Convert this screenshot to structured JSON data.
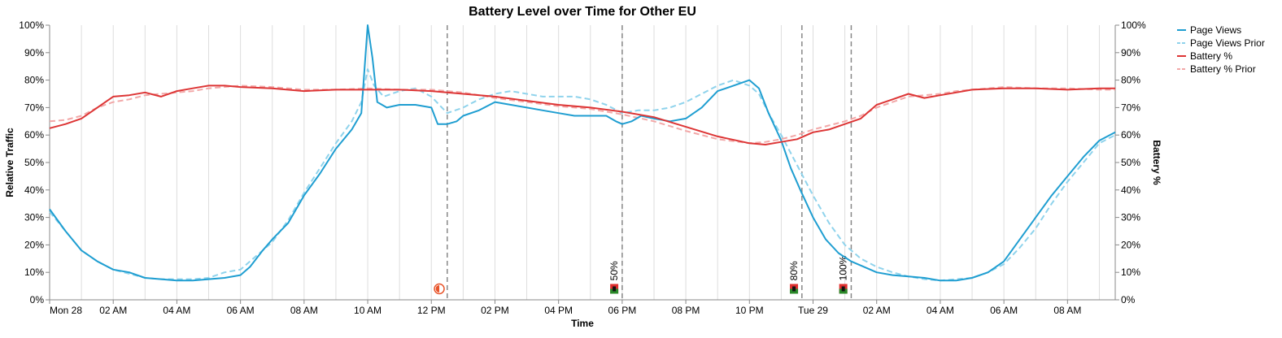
{
  "chart_data": {
    "type": "line",
    "title": "Battery Level over Time for Other EU",
    "xlabel": "Time",
    "ylabel_left": "Relative Traffic",
    "ylabel_right": "Battery %",
    "grid": "vertical",
    "legend_position": "top-right",
    "x_range_hours": [
      0,
      33.5
    ],
    "ylim": [
      0,
      100
    ],
    "x_ticks": [
      {
        "h": 0,
        "label": "Mon 28"
      },
      {
        "h": 2,
        "label": "02 AM"
      },
      {
        "h": 4,
        "label": "04 AM"
      },
      {
        "h": 6,
        "label": "06 AM"
      },
      {
        "h": 8,
        "label": "08 AM"
      },
      {
        "h": 10,
        "label": "10 AM"
      },
      {
        "h": 12,
        "label": "12 PM"
      },
      {
        "h": 14,
        "label": "02 PM"
      },
      {
        "h": 16,
        "label": "04 PM"
      },
      {
        "h": 18,
        "label": "06 PM"
      },
      {
        "h": 20,
        "label": "08 PM"
      },
      {
        "h": 22,
        "label": "10 PM"
      },
      {
        "h": 24,
        "label": "Tue 29"
      },
      {
        "h": 26,
        "label": "02 AM"
      },
      {
        "h": 28,
        "label": "04 AM"
      },
      {
        "h": 30,
        "label": "06 AM"
      },
      {
        "h": 32,
        "label": "08 AM"
      }
    ],
    "y_ticks_left": [
      "0%",
      "10%",
      "20%",
      "30%",
      "40%",
      "50%",
      "60%",
      "70%",
      "80%",
      "90%",
      "100%"
    ],
    "y_ticks_right": [
      "0%",
      "10%",
      "20%",
      "30%",
      "40%",
      "50%",
      "60%",
      "70%",
      "80%",
      "90%",
      "100%"
    ],
    "series": [
      {
        "name": "Page Views",
        "color": "#1f9ed1",
        "dashed": false,
        "axis": "left",
        "points": [
          [
            0,
            33
          ],
          [
            0.5,
            25
          ],
          [
            1,
            18
          ],
          [
            1.5,
            14
          ],
          [
            2,
            11
          ],
          [
            2.5,
            10
          ],
          [
            3,
            8
          ],
          [
            3.5,
            7.5
          ],
          [
            4,
            7
          ],
          [
            4.5,
            7
          ],
          [
            5,
            7.5
          ],
          [
            5.5,
            8
          ],
          [
            6,
            9
          ],
          [
            6.3,
            12
          ],
          [
            6.7,
            18
          ],
          [
            7,
            22
          ],
          [
            7.5,
            28
          ],
          [
            8,
            38
          ],
          [
            8.5,
            46
          ],
          [
            9,
            55
          ],
          [
            9.5,
            62
          ],
          [
            9.8,
            68
          ],
          [
            10,
            100
          ],
          [
            10.15,
            88
          ],
          [
            10.3,
            72
          ],
          [
            10.6,
            70
          ],
          [
            11,
            71
          ],
          [
            11.5,
            71
          ],
          [
            12,
            70
          ],
          [
            12.2,
            64
          ],
          [
            12.5,
            64
          ],
          [
            12.8,
            65
          ],
          [
            13,
            67
          ],
          [
            13.5,
            69
          ],
          [
            14,
            72
          ],
          [
            14.5,
            71
          ],
          [
            15,
            70
          ],
          [
            15.5,
            69
          ],
          [
            16,
            68
          ],
          [
            16.5,
            67
          ],
          [
            17,
            67
          ],
          [
            17.5,
            67
          ],
          [
            17.8,
            65
          ],
          [
            18,
            64
          ],
          [
            18.3,
            65
          ],
          [
            18.6,
            67
          ],
          [
            19,
            66
          ],
          [
            19.5,
            65
          ],
          [
            20,
            66
          ],
          [
            20.5,
            70
          ],
          [
            21,
            76
          ],
          [
            21.5,
            78
          ],
          [
            22,
            80
          ],
          [
            22.3,
            77
          ],
          [
            22.6,
            68
          ],
          [
            23,
            58
          ],
          [
            23.3,
            48
          ],
          [
            23.6,
            40
          ],
          [
            24,
            30
          ],
          [
            24.4,
            22
          ],
          [
            24.8,
            17
          ],
          [
            25.2,
            14
          ],
          [
            25.6,
            12
          ],
          [
            26,
            10
          ],
          [
            26.5,
            9
          ],
          [
            27,
            8.5
          ],
          [
            27.5,
            8
          ],
          [
            28,
            7
          ],
          [
            28.5,
            7
          ],
          [
            29,
            8
          ],
          [
            29.5,
            10
          ],
          [
            30,
            14
          ],
          [
            30.5,
            22
          ],
          [
            31,
            30
          ],
          [
            31.5,
            38
          ],
          [
            32,
            45
          ],
          [
            32.5,
            52
          ],
          [
            33,
            58
          ],
          [
            33.5,
            61
          ]
        ]
      },
      {
        "name": "Page Views Prior",
        "color": "#8fd3ec",
        "dashed": true,
        "axis": "left",
        "points": [
          [
            0,
            32
          ],
          [
            0.5,
            25
          ],
          [
            1,
            18
          ],
          [
            1.5,
            14
          ],
          [
            2,
            11
          ],
          [
            2.5,
            9.5
          ],
          [
            3,
            8
          ],
          [
            3.5,
            7.5
          ],
          [
            4,
            7.5
          ],
          [
            4.5,
            7.5
          ],
          [
            5,
            8
          ],
          [
            5.5,
            10
          ],
          [
            6,
            11
          ],
          [
            6.5,
            16
          ],
          [
            7,
            21
          ],
          [
            7.5,
            29
          ],
          [
            8,
            39
          ],
          [
            8.5,
            48
          ],
          [
            9,
            57
          ],
          [
            9.5,
            65
          ],
          [
            9.8,
            72
          ],
          [
            10,
            84
          ],
          [
            10.2,
            78
          ],
          [
            10.5,
            74
          ],
          [
            11,
            76
          ],
          [
            11.5,
            77
          ],
          [
            12,
            74
          ],
          [
            12.5,
            68
          ],
          [
            13,
            70
          ],
          [
            13.5,
            73
          ],
          [
            14,
            75
          ],
          [
            14.5,
            76
          ],
          [
            15,
            75
          ],
          [
            15.5,
            74
          ],
          [
            16,
            74
          ],
          [
            16.5,
            74
          ],
          [
            17,
            73
          ],
          [
            17.5,
            71
          ],
          [
            18,
            68
          ],
          [
            18.5,
            69
          ],
          [
            19,
            69
          ],
          [
            19.5,
            70
          ],
          [
            20,
            72
          ],
          [
            20.5,
            75
          ],
          [
            21,
            78
          ],
          [
            21.5,
            80
          ],
          [
            22,
            78
          ],
          [
            22.3,
            75
          ],
          [
            22.6,
            68
          ],
          [
            23,
            60
          ],
          [
            23.5,
            49
          ],
          [
            24,
            38
          ],
          [
            24.5,
            28
          ],
          [
            25,
            20
          ],
          [
            25.5,
            15
          ],
          [
            26,
            12
          ],
          [
            26.5,
            10
          ],
          [
            27,
            8.5
          ],
          [
            27.5,
            7.5
          ],
          [
            28,
            7
          ],
          [
            28.5,
            7.5
          ],
          [
            29,
            8
          ],
          [
            29.5,
            10
          ],
          [
            30,
            13
          ],
          [
            30.5,
            19
          ],
          [
            31,
            26
          ],
          [
            31.5,
            35
          ],
          [
            32,
            43
          ],
          [
            32.5,
            50
          ],
          [
            33,
            57
          ],
          [
            33.5,
            60
          ]
        ]
      },
      {
        "name": "Battery %",
        "color": "#dd3535",
        "dashed": false,
        "axis": "right",
        "points": [
          [
            0,
            62.5
          ],
          [
            0.5,
            64
          ],
          [
            1,
            66
          ],
          [
            1.5,
            70
          ],
          [
            2,
            74
          ],
          [
            2.5,
            74.5
          ],
          [
            3,
            75.5
          ],
          [
            3.5,
            74
          ],
          [
            4,
            76
          ],
          [
            4.5,
            77
          ],
          [
            5,
            78
          ],
          [
            5.5,
            78
          ],
          [
            6,
            77.5
          ],
          [
            7,
            77
          ],
          [
            8,
            76
          ],
          [
            9,
            76.5
          ],
          [
            10,
            76.5
          ],
          [
            11,
            76.5
          ],
          [
            12,
            76
          ],
          [
            13,
            75
          ],
          [
            14,
            74
          ],
          [
            15,
            72.5
          ],
          [
            16,
            71
          ],
          [
            17,
            70
          ],
          [
            18,
            68.5
          ],
          [
            19,
            66.5
          ],
          [
            20,
            63
          ],
          [
            21,
            59.5
          ],
          [
            22,
            57
          ],
          [
            22.5,
            56.5
          ],
          [
            23,
            57.5
          ],
          [
            23.5,
            58.5
          ],
          [
            24,
            61
          ],
          [
            24.5,
            62
          ],
          [
            25,
            64
          ],
          [
            25.5,
            66
          ],
          [
            26,
            71
          ],
          [
            26.5,
            73
          ],
          [
            27,
            75
          ],
          [
            27.5,
            73.5
          ],
          [
            28,
            74.5
          ],
          [
            28.5,
            75.5
          ],
          [
            29,
            76.5
          ],
          [
            30,
            77
          ],
          [
            31,
            77
          ],
          [
            32,
            76.5
          ],
          [
            33,
            77
          ],
          [
            33.5,
            77
          ]
        ]
      },
      {
        "name": "Battery % Prior",
        "color": "#f2a8a8",
        "dashed": true,
        "axis": "right",
        "points": [
          [
            0,
            65
          ],
          [
            0.5,
            65.5
          ],
          [
            1,
            67
          ],
          [
            1.5,
            70
          ],
          [
            2,
            72
          ],
          [
            2.5,
            73
          ],
          [
            3,
            74.5
          ],
          [
            3.5,
            75
          ],
          [
            4,
            75.5
          ],
          [
            4.5,
            76
          ],
          [
            5,
            77
          ],
          [
            6,
            78
          ],
          [
            7,
            77.5
          ],
          [
            8,
            76.5
          ],
          [
            9,
            76.5
          ],
          [
            10,
            77
          ],
          [
            11,
            76.5
          ],
          [
            12,
            76.5
          ],
          [
            13,
            75.5
          ],
          [
            14,
            73.5
          ],
          [
            15,
            72
          ],
          [
            16,
            70.5
          ],
          [
            17,
            69.5
          ],
          [
            18,
            67.5
          ],
          [
            19,
            65
          ],
          [
            20,
            61.5
          ],
          [
            21,
            58.5
          ],
          [
            22,
            57
          ],
          [
            22.5,
            57.5
          ],
          [
            23,
            58.5
          ],
          [
            23.5,
            60
          ],
          [
            24,
            62
          ],
          [
            24.5,
            63.5
          ],
          [
            25,
            65
          ],
          [
            25.5,
            67
          ],
          [
            26,
            70
          ],
          [
            26.5,
            72
          ],
          [
            27,
            74
          ],
          [
            27.5,
            74.5
          ],
          [
            28,
            75
          ],
          [
            28.5,
            76
          ],
          [
            29,
            76.5
          ],
          [
            30,
            77.5
          ],
          [
            31,
            77
          ],
          [
            32,
            77
          ],
          [
            33,
            76.5
          ],
          [
            33.5,
            76.5
          ]
        ]
      }
    ],
    "markers": [
      {
        "h": 12.5,
        "label": "",
        "icon": "half-circle-icon",
        "icon_x_h": 12.25
      },
      {
        "h": 18,
        "label": "50%",
        "icon": "battery-icon",
        "icon_x_h": 17.75
      },
      {
        "h": 23.65,
        "label": "80%",
        "icon": "battery-icon",
        "icon_x_h": 23.4
      },
      {
        "h": 25.2,
        "label": "100%",
        "icon": "battery-icon",
        "icon_x_h": 24.95
      }
    ]
  }
}
